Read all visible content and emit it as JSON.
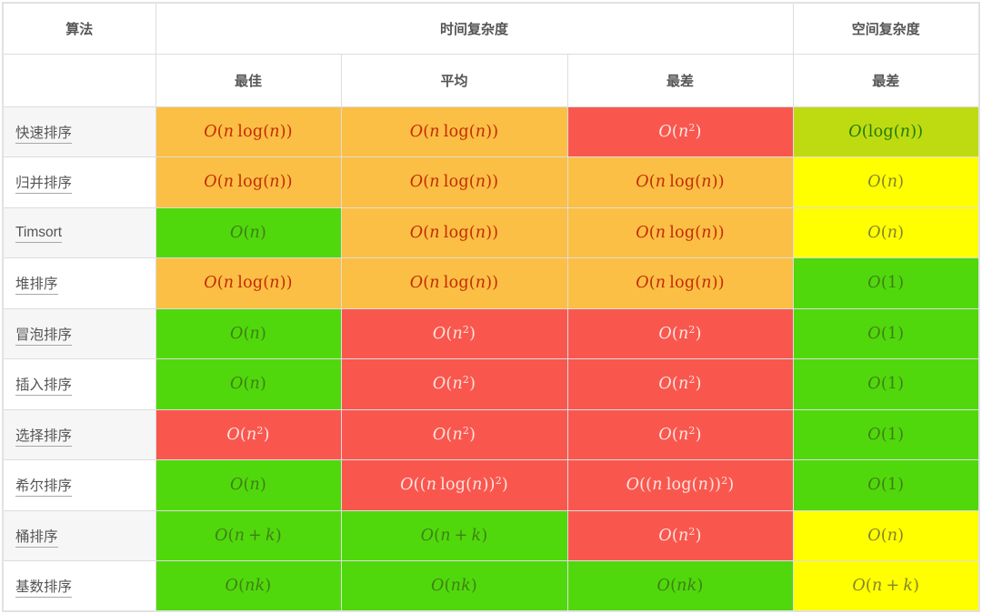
{
  "header": {
    "algorithm": "算法",
    "time_complexity": "时间复杂度",
    "space_complexity": "空间复杂度",
    "best": "最佳",
    "average": "平均",
    "worst": "最差",
    "space_worst": "最差"
  },
  "levels": {
    "green": {
      "bg": "#50d80c",
      "fg": "#3f8014"
    },
    "yellowgreen": {
      "bg": "#bedb12",
      "fg": "#237a06"
    },
    "yellow": {
      "bg": "#ffff00",
      "fg": "#84842c"
    },
    "orange": {
      "bg": "#fbbf45",
      "fg": "#c32b04"
    },
    "red": {
      "bg": "#f9574e",
      "fg": "#ffe4e1"
    }
  },
  "rows": [
    {
      "label": "快速排序",
      "cells": [
        {
          "value": "O(n log(n))",
          "level": "orange"
        },
        {
          "value": "O(n log(n))",
          "level": "orange"
        },
        {
          "value": "O(n^2)",
          "level": "red"
        },
        {
          "value": "O(log(n))",
          "level": "yellowgreen"
        }
      ]
    },
    {
      "label": "归并排序",
      "cells": [
        {
          "value": "O(n log(n))",
          "level": "orange"
        },
        {
          "value": "O(n log(n))",
          "level": "orange"
        },
        {
          "value": "O(n log(n))",
          "level": "orange"
        },
        {
          "value": "O(n)",
          "level": "yellow"
        }
      ]
    },
    {
      "label": "Timsort",
      "cells": [
        {
          "value": "O(n)",
          "level": "green"
        },
        {
          "value": "O(n log(n))",
          "level": "orange"
        },
        {
          "value": "O(n log(n))",
          "level": "orange"
        },
        {
          "value": "O(n)",
          "level": "yellow"
        }
      ]
    },
    {
      "label": "堆排序",
      "cells": [
        {
          "value": "O(n log(n))",
          "level": "orange"
        },
        {
          "value": "O(n log(n))",
          "level": "orange"
        },
        {
          "value": "O(n log(n))",
          "level": "orange"
        },
        {
          "value": "O(1)",
          "level": "green"
        }
      ]
    },
    {
      "label": "冒泡排序",
      "cells": [
        {
          "value": "O(n)",
          "level": "green"
        },
        {
          "value": "O(n^2)",
          "level": "red"
        },
        {
          "value": "O(n^2)",
          "level": "red"
        },
        {
          "value": "O(1)",
          "level": "green"
        }
      ]
    },
    {
      "label": "插入排序",
      "cells": [
        {
          "value": "O(n)",
          "level": "green"
        },
        {
          "value": "O(n^2)",
          "level": "red"
        },
        {
          "value": "O(n^2)",
          "level": "red"
        },
        {
          "value": "O(1)",
          "level": "green"
        }
      ]
    },
    {
      "label": "选择排序",
      "cells": [
        {
          "value": "O(n^2)",
          "level": "red"
        },
        {
          "value": "O(n^2)",
          "level": "red"
        },
        {
          "value": "O(n^2)",
          "level": "red"
        },
        {
          "value": "O(1)",
          "level": "green"
        }
      ]
    },
    {
      "label": "希尔排序",
      "cells": [
        {
          "value": "O(n)",
          "level": "green"
        },
        {
          "value": "O((n log(n))^2)",
          "level": "red"
        },
        {
          "value": "O((n log(n))^2)",
          "level": "red"
        },
        {
          "value": "O(1)",
          "level": "green"
        }
      ]
    },
    {
      "label": "桶排序",
      "cells": [
        {
          "value": "O(n+k)",
          "level": "green"
        },
        {
          "value": "O(n+k)",
          "level": "green"
        },
        {
          "value": "O(n^2)",
          "level": "red"
        },
        {
          "value": "O(n)",
          "level": "yellow"
        }
      ]
    },
    {
      "label": "基数排序",
      "cells": [
        {
          "value": "O(nk)",
          "level": "green"
        },
        {
          "value": "O(nk)",
          "level": "green"
        },
        {
          "value": "O(nk)",
          "level": "green"
        },
        {
          "value": "O(n+k)",
          "level": "yellow"
        }
      ]
    }
  ]
}
